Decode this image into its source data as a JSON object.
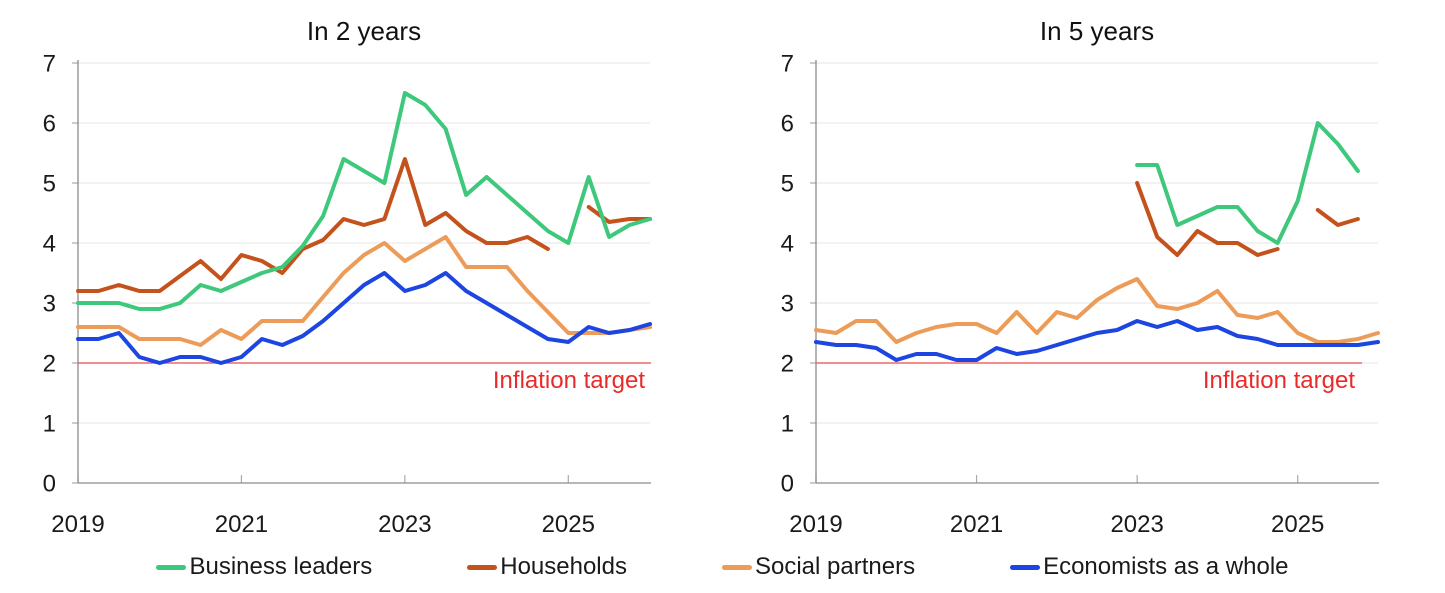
{
  "colors": {
    "business_leaders": "#3EC87B",
    "households": "#C4521C",
    "social_partners": "#EC9C58",
    "economists": "#1C45E2",
    "inflation_line": "#F26A6A",
    "inflation_text": "#EA2A2A",
    "grid": "#E9E9E9",
    "axis": "#8C8C8C",
    "tick": "#AAAAAA",
    "text": "#1A1A1A"
  },
  "legend": {
    "items": [
      {
        "label": "Business leaders",
        "series": "business_leaders"
      },
      {
        "label": "Households",
        "series": "households"
      },
      {
        "label": "Social partners",
        "series": "social_partners"
      },
      {
        "label": "Economists as a whole",
        "series": "economists"
      }
    ]
  },
  "chart_data": [
    {
      "type": "line",
      "title": "In 2 years",
      "x_unit": "quarter",
      "x": [
        "2019Q1",
        "2019Q2",
        "2019Q3",
        "2019Q4",
        "2020Q1",
        "2020Q2",
        "2020Q3",
        "2020Q4",
        "2021Q1",
        "2021Q2",
        "2021Q3",
        "2021Q4",
        "2022Q1",
        "2022Q2",
        "2022Q3",
        "2022Q4",
        "2023Q1",
        "2023Q2",
        "2023Q3",
        "2023Q4",
        "2024Q1",
        "2024Q2",
        "2024Q3",
        "2024Q4",
        "2025Q1",
        "2025Q2",
        "2025Q3",
        "2025Q4",
        "2026Q1"
      ],
      "x_tick_labels": [
        "2019",
        "2021",
        "2023",
        "2025"
      ],
      "x_tick_indices": [
        0,
        8,
        16,
        24
      ],
      "ylim": [
        0,
        7
      ],
      "y_ticks": [
        0,
        1,
        2,
        3,
        4,
        5,
        6,
        7
      ],
      "grid": true,
      "legend_position": "bottom",
      "target_line": {
        "value": 2.0,
        "label": "Inflation target"
      },
      "series": [
        {
          "name": "Business leaders",
          "color_key": "business_leaders",
          "values": [
            3.0,
            3.0,
            3.0,
            2.9,
            2.9,
            3.0,
            3.3,
            3.2,
            3.35,
            3.5,
            3.6,
            3.95,
            4.45,
            5.4,
            5.2,
            5.0,
            6.5,
            6.3,
            5.9,
            4.8,
            5.1,
            4.8,
            4.5,
            4.2,
            4.0,
            5.1,
            4.1,
            4.3,
            4.4
          ]
        },
        {
          "name": "Households",
          "color_key": "households",
          "values": [
            3.2,
            3.2,
            3.3,
            3.2,
            3.2,
            3.45,
            3.7,
            3.4,
            3.8,
            3.7,
            3.5,
            3.9,
            4.05,
            4.4,
            4.3,
            4.4,
            5.4,
            4.3,
            4.5,
            4.2,
            4.0,
            4.0,
            4.1,
            3.9,
            null,
            4.6,
            4.35,
            4.4,
            4.4
          ]
        },
        {
          "name": "Social partners",
          "color_key": "social_partners",
          "values": [
            2.6,
            2.6,
            2.6,
            2.4,
            2.4,
            2.4,
            2.3,
            2.55,
            2.4,
            2.7,
            2.7,
            2.7,
            3.1,
            3.5,
            3.8,
            4.0,
            3.7,
            3.9,
            4.1,
            3.6,
            3.6,
            3.6,
            3.2,
            2.85,
            2.5,
            2.5,
            2.5,
            2.55,
            2.6
          ]
        },
        {
          "name": "Economists as a whole",
          "color_key": "economists",
          "values": [
            2.4,
            2.4,
            2.5,
            2.1,
            2.0,
            2.1,
            2.1,
            2.0,
            2.1,
            2.4,
            2.3,
            2.45,
            2.7,
            3.0,
            3.3,
            3.5,
            3.2,
            3.3,
            3.5,
            3.2,
            3.0,
            2.8,
            2.6,
            2.4,
            2.35,
            2.6,
            2.5,
            2.55,
            2.65
          ]
        }
      ]
    },
    {
      "type": "line",
      "title": "In 5 years",
      "x_unit": "quarter",
      "x": [
        "2019Q1",
        "2019Q2",
        "2019Q3",
        "2019Q4",
        "2020Q1",
        "2020Q2",
        "2020Q3",
        "2020Q4",
        "2021Q1",
        "2021Q2",
        "2021Q3",
        "2021Q4",
        "2022Q1",
        "2022Q2",
        "2022Q3",
        "2022Q4",
        "2023Q1",
        "2023Q2",
        "2023Q3",
        "2023Q4",
        "2024Q1",
        "2024Q2",
        "2024Q3",
        "2024Q4",
        "2025Q1",
        "2025Q2",
        "2025Q3",
        "2025Q4",
        "2026Q1"
      ],
      "x_tick_labels": [
        "2019",
        "2021",
        "2023",
        "2025"
      ],
      "x_tick_indices": [
        0,
        8,
        16,
        24
      ],
      "ylim": [
        0,
        7
      ],
      "y_ticks": [
        0,
        1,
        2,
        3,
        4,
        5,
        6,
        7
      ],
      "grid": true,
      "legend_position": "bottom",
      "target_line": {
        "value": 2.0,
        "label": "Inflation target"
      },
      "series": [
        {
          "name": "Business leaders",
          "color_key": "business_leaders",
          "values": [
            null,
            null,
            null,
            null,
            null,
            null,
            null,
            null,
            null,
            null,
            null,
            null,
            null,
            null,
            null,
            null,
            5.3,
            5.3,
            4.3,
            4.45,
            4.6,
            4.6,
            4.2,
            4.0,
            4.7,
            6.0,
            5.65,
            5.2,
            null
          ]
        },
        {
          "name": "Households",
          "color_key": "households",
          "values": [
            null,
            null,
            null,
            null,
            null,
            null,
            null,
            null,
            null,
            null,
            null,
            null,
            null,
            null,
            null,
            null,
            5.0,
            4.1,
            3.8,
            4.2,
            4.0,
            4.0,
            3.8,
            3.9,
            null,
            4.55,
            4.3,
            4.4,
            null
          ]
        },
        {
          "name": "Social partners",
          "color_key": "social_partners",
          "values": [
            2.55,
            2.5,
            2.7,
            2.7,
            2.35,
            2.5,
            2.6,
            2.65,
            2.65,
            2.5,
            2.85,
            2.5,
            2.85,
            2.75,
            3.05,
            3.25,
            3.4,
            2.95,
            2.9,
            3.0,
            3.2,
            2.8,
            2.75,
            2.85,
            2.5,
            2.35,
            2.35,
            2.4,
            2.5
          ]
        },
        {
          "name": "Economists as a whole",
          "color_key": "economists",
          "values": [
            2.35,
            2.3,
            2.3,
            2.25,
            2.05,
            2.15,
            2.15,
            2.05,
            2.05,
            2.25,
            2.15,
            2.2,
            2.3,
            2.4,
            2.5,
            2.55,
            2.7,
            2.6,
            2.7,
            2.55,
            2.6,
            2.45,
            2.4,
            2.3,
            2.3,
            2.3,
            2.3,
            2.3,
            2.35
          ]
        }
      ]
    }
  ]
}
